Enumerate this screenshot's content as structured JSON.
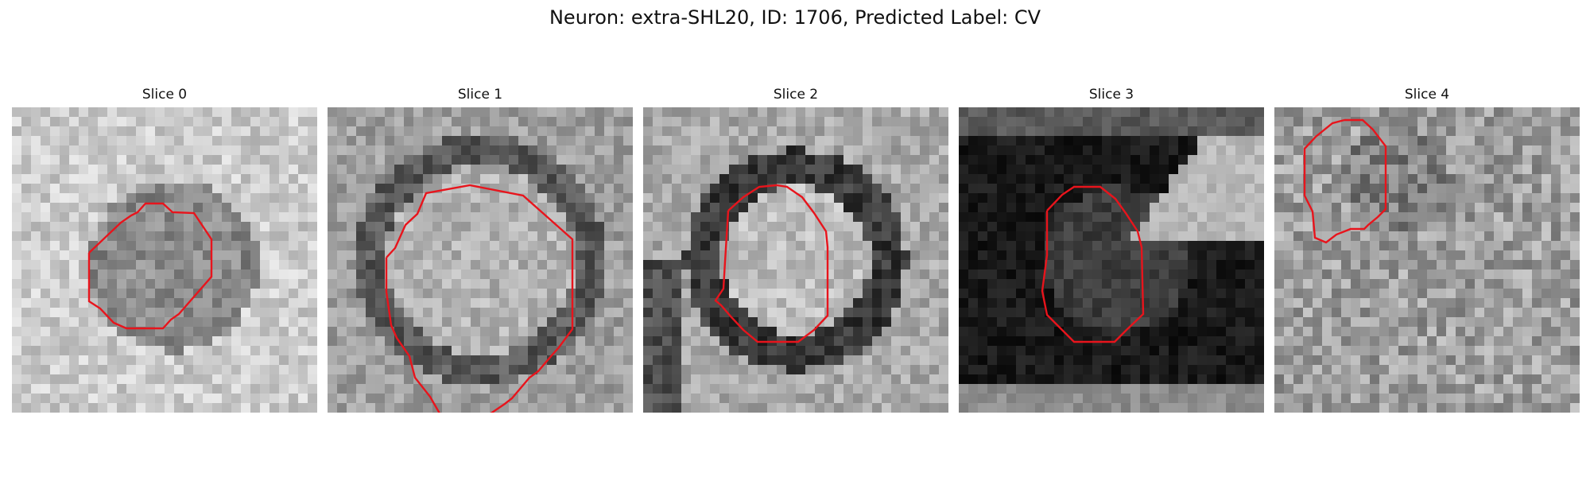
{
  "figure": {
    "title": "Neuron: extra-SHL20, ID: 1706, Predicted Label: CV"
  },
  "panels": [
    {
      "title": "Slice 0",
      "grid_size": 32,
      "seed": 11,
      "background": "light",
      "roi_color": "#e8141c"
    },
    {
      "title": "Slice 1",
      "grid_size": 32,
      "seed": 23,
      "background": "mixed",
      "roi_color": "#e8141c"
    },
    {
      "title": "Slice 2",
      "grid_size": 32,
      "seed": 37,
      "background": "ring",
      "roi_color": "#e8141c"
    },
    {
      "title": "Slice 3",
      "grid_size": 32,
      "seed": 41,
      "background": "dark",
      "roi_color": "#e8141c"
    },
    {
      "title": "Slice 4",
      "grid_size": 32,
      "seed": 53,
      "background": "noisy",
      "roi_color": "#e8141c"
    }
  ]
}
